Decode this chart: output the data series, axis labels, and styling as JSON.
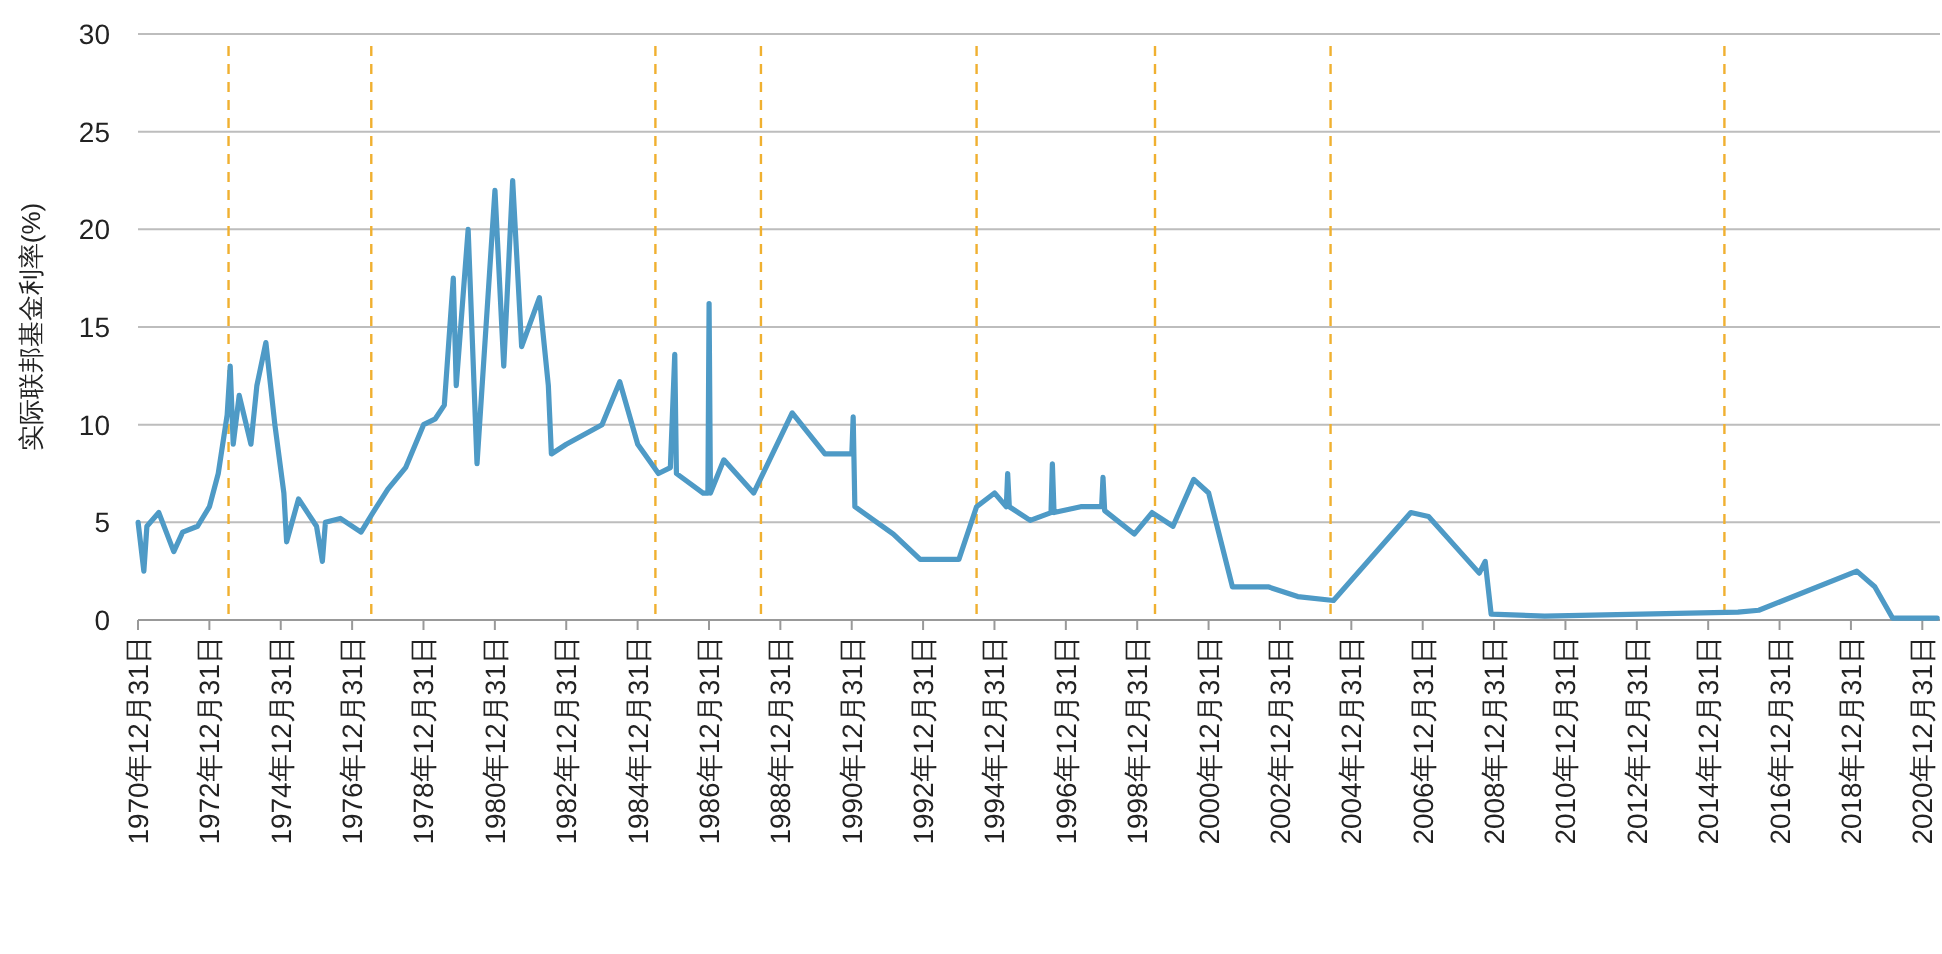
{
  "chart_data": {
    "type": "line",
    "ylabel": "实际联邦基金利率(%)",
    "ylim": [
      0,
      30
    ],
    "yticks": [
      0,
      5,
      10,
      15,
      20,
      25,
      30
    ],
    "grid": "y",
    "marker": "none",
    "line_style": "solid",
    "xlim": [
      "1970-12-31",
      "2021-06-30"
    ],
    "xticks": [
      {
        "value": "1970-12-31",
        "label": "1970年12月31日"
      },
      {
        "value": "1972-12-31",
        "label": "1972年12月31日"
      },
      {
        "value": "1974-12-31",
        "label": "1974年12月31日"
      },
      {
        "value": "1976-12-31",
        "label": "1976年12月31日"
      },
      {
        "value": "1978-12-31",
        "label": "1978年12月31日"
      },
      {
        "value": "1980-12-31",
        "label": "1980年12月31日"
      },
      {
        "value": "1982-12-31",
        "label": "1982年12月31日"
      },
      {
        "value": "1984-12-31",
        "label": "1984年12月31日"
      },
      {
        "value": "1986-12-31",
        "label": "1986年12月31日"
      },
      {
        "value": "1988-12-31",
        "label": "1988年12月31日"
      },
      {
        "value": "1990-12-31",
        "label": "1990年12月31日"
      },
      {
        "value": "1992-12-31",
        "label": "1992年12月31日"
      },
      {
        "value": "1994-12-31",
        "label": "1994年12月31日"
      },
      {
        "value": "1996-12-31",
        "label": "1996年12月31日"
      },
      {
        "value": "1998-12-31",
        "label": "1998年12月31日"
      },
      {
        "value": "2000-12-31",
        "label": "2000年12月31日"
      },
      {
        "value": "2002-12-31",
        "label": "2002年12月31日"
      },
      {
        "value": "2004-12-31",
        "label": "2004年12月31日"
      },
      {
        "value": "2006-12-31",
        "label": "2006年12月31日"
      },
      {
        "value": "2008-12-31",
        "label": "2008年12月31日"
      },
      {
        "value": "2010-12-31",
        "label": "2010年12月31日"
      },
      {
        "value": "2012-12-31",
        "label": "2012年12月31日"
      },
      {
        "value": "2014-12-31",
        "label": "2014年12月31日"
      },
      {
        "value": "2016-12-31",
        "label": "2016年12月31日"
      },
      {
        "value": "2018-12-31",
        "label": "2018年12月31日"
      },
      {
        "value": "2020-12-31",
        "label": "2020年12月31日"
      }
    ],
    "x": [
      "1971-01-01",
      "1971-03-01",
      "1971-04-01",
      "1971-08-01",
      "1972-01-01",
      "1972-04-01",
      "1972-09-01",
      "1973-01-01",
      "1973-04-01",
      "1973-07-01",
      "1973-08-01",
      "1973-09-01",
      "1973-11-01",
      "1974-03-01",
      "1974-05-01",
      "1974-08-01",
      "1974-11-01",
      "1975-02-01",
      "1975-03-01",
      "1975-07-01",
      "1975-10-01",
      "1976-01-01",
      "1976-03-01",
      "1976-04-01",
      "1976-09-01",
      "1977-04-01",
      "1977-08-01",
      "1978-01-01",
      "1978-07-01",
      "1979-01-01",
      "1979-05-01",
      "1979-08-01",
      "1979-11-01",
      "1979-12-01",
      "1980-04-01",
      "1980-07-01",
      "1981-01-01",
      "1981-04-01",
      "1981-07-01",
      "1981-10-01",
      "1982-04-01",
      "1982-07-01",
      "1982-08-01",
      "1983-01-01",
      "1984-01-01",
      "1984-07-01",
      "1985-01-01",
      "1985-08-01",
      "1985-12-01",
      "1986-01-15",
      "1986-02-01",
      "1986-11-01",
      "1986-12-20",
      "1987-01-01",
      "1987-01-15",
      "1987-06-01",
      "1988-04-01",
      "1989-05-01",
      "1990-04-01",
      "1991-01-01",
      "1991-01-15",
      "1991-02-01",
      "1992-03-01",
      "1992-12-01",
      "1994-01-01",
      "1994-07-01",
      "1995-01-01",
      "1995-05-01",
      "1995-05-15",
      "1995-06-01",
      "1996-01-01",
      "1996-08-01",
      "1996-08-15",
      "1996-09-01",
      "1997-06-01",
      "1998-01-01",
      "1998-01-15",
      "1998-02-01",
      "1998-12-01",
      "1999-06-01",
      "2000-01-01",
      "2000-08-01",
      "2001-01-01",
      "2001-09-01",
      "2002-09-01",
      "2003-07-01",
      "2004-07-01",
      "2006-09-01",
      "2007-03-01",
      "2008-08-01",
      "2008-10-01",
      "2008-12-01",
      "2010-06-01",
      "2015-11-01",
      "2016-06-01",
      "2019-03-01",
      "2019-09-01",
      "2020-03-01",
      "2021-06-01"
    ],
    "series": [
      {
        "color": "#4e9ac6",
        "values": [
          5.0,
          2.5,
          4.8,
          5.5,
          3.5,
          4.5,
          4.8,
          5.8,
          7.5,
          10.5,
          13,
          9,
          11.5,
          9,
          12,
          14.2,
          10,
          6.5,
          4.0,
          6.2,
          5.5,
          4.8,
          3.0,
          5.0,
          5.2,
          4.5,
          5.5,
          6.7,
          7.8,
          10,
          10.3,
          11,
          17.5,
          12,
          20,
          8,
          22,
          13,
          22.5,
          14,
          16.5,
          12,
          8.5,
          9,
          10,
          12.2,
          9,
          7.5,
          7.8,
          13.6,
          7.5,
          6.5,
          6.5,
          16.2,
          6.5,
          8.2,
          6.5,
          10.6,
          8.5,
          8.5,
          10.4,
          5.8,
          4.4,
          3.1,
          3.1,
          5.8,
          6.5,
          5.8,
          7.5,
          5.8,
          5.1,
          5.5,
          8.0,
          5.5,
          5.8,
          5.8,
          7.3,
          5.6,
          4.4,
          5.5,
          4.8,
          7.2,
          6.5,
          1.7,
          1.7,
          1.2,
          1.0,
          5.5,
          5.3,
          2.4,
          3.0,
          0.3,
          0.2,
          0.4,
          0.5,
          2.5,
          1.7,
          0.1,
          0.1
        ]
      }
    ],
    "ref_lines": [
      {
        "axis": "x",
        "value": "1973-07-15",
        "color": "#f0b030",
        "line_style": "dashed"
      },
      {
        "axis": "x",
        "value": "1977-07-15",
        "color": "#f0b030",
        "line_style": "dashed"
      },
      {
        "axis": "x",
        "value": "1985-07-01",
        "color": "#f0b030",
        "line_style": "dashed"
      },
      {
        "axis": "x",
        "value": "1988-06-15",
        "color": "#f0b030",
        "line_style": "dashed"
      },
      {
        "axis": "x",
        "value": "1994-07-01",
        "color": "#f0b030",
        "line_style": "dashed"
      },
      {
        "axis": "x",
        "value": "1999-07-01",
        "color": "#f0b030",
        "line_style": "dashed"
      },
      {
        "axis": "x",
        "value": "2004-06-01",
        "color": "#f0b030",
        "line_style": "dashed"
      },
      {
        "axis": "x",
        "value": "2015-06-15",
        "color": "#f0b030",
        "line_style": "dashed"
      }
    ]
  }
}
